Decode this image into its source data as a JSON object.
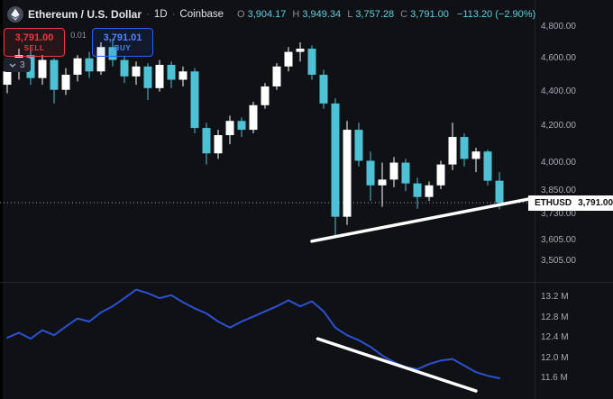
{
  "header": {
    "symbol_title": "Ethereum / U.S. Dollar",
    "separator": "·",
    "interval": "1D",
    "exchange": "Coinbase",
    "ohlc": {
      "o_label": "O",
      "o_value": "3,904.17",
      "h_label": "H",
      "h_value": "3,949.34",
      "l_label": "L",
      "l_value": "3,757.28",
      "c_label": "C",
      "c_value": "3,791.00",
      "change": "−113.20 (−2.90%)"
    }
  },
  "trade_panel": {
    "sell_price": "3,791.00",
    "sell_label": "SELL",
    "spread": "0.01",
    "buy_price": "3,791.01",
    "buy_label": "BUY",
    "objects_count": "3"
  },
  "price_scale": {
    "labels": [
      {
        "text": "4,800.00",
        "value": 4800
      },
      {
        "text": "4,600.00",
        "value": 4600
      },
      {
        "text": "4,400.00",
        "value": 4400
      },
      {
        "text": "4,200.00",
        "value": 4200
      },
      {
        "text": "4,000.00",
        "value": 4000
      },
      {
        "text": "3,850.00",
        "value": 3850
      },
      {
        "text": "3,730.00",
        "value": 3730
      },
      {
        "text": "3,605.00",
        "value": 3605
      },
      {
        "text": "3,505.00",
        "value": 3505
      }
    ],
    "tag": {
      "symbol": "ETHUSD",
      "price": "3,791.00",
      "price_value": 3791
    }
  },
  "volume_scale": {
    "labels": [
      {
        "text": "13.2 M",
        "value": 13.2
      },
      {
        "text": "12.8 M",
        "value": 12.8
      },
      {
        "text": "12.4 M",
        "value": 12.4
      },
      {
        "text": "12.0 M",
        "value": 12.0
      },
      {
        "text": "11.6 M",
        "value": 11.6
      }
    ]
  },
  "chart_data": {
    "type": "bar",
    "subtype": "candlestick",
    "title": "Ethereum / U.S. Dollar",
    "interval": "1D",
    "exchange": "Coinbase",
    "ohlc_last": {
      "open": 3904.17,
      "high": 3949.34,
      "low": 3757.28,
      "close": 3791.0,
      "change": -113.2,
      "change_pct": -2.9
    },
    "price_axis": {
      "scale": "log",
      "ticks": [
        4800,
        4600,
        4400,
        4200,
        4000,
        3850,
        3730,
        3605,
        3505
      ],
      "last_price": 3791
    },
    "up_color": "#ffffff",
    "down_color": "#4ec1d4",
    "line_color": "#2b52d4",
    "trendline_color": "#ffffff",
    "candles": [
      [
        4440,
        4580,
        4390,
        4520
      ],
      [
        4520,
        4660,
        4470,
        4620
      ],
      [
        4620,
        4650,
        4440,
        4480
      ],
      [
        4480,
        4620,
        4440,
        4590
      ],
      [
        4590,
        4600,
        4330,
        4410
      ],
      [
        4410,
        4540,
        4380,
        4500
      ],
      [
        4500,
        4620,
        4460,
        4600
      ],
      [
        4600,
        4640,
        4480,
        4520
      ],
      [
        4520,
        4700,
        4500,
        4670
      ],
      [
        4670,
        4720,
        4550,
        4590
      ],
      [
        4590,
        4610,
        4450,
        4490
      ],
      [
        4490,
        4580,
        4440,
        4550
      ],
      [
        4550,
        4570,
        4350,
        4420
      ],
      [
        4420,
        4590,
        4400,
        4560
      ],
      [
        4560,
        4580,
        4420,
        4470
      ],
      [
        4470,
        4550,
        4430,
        4520
      ],
      [
        4520,
        4540,
        4160,
        4190
      ],
      [
        4190,
        4220,
        3990,
        4050
      ],
      [
        4050,
        4180,
        4020,
        4150
      ],
      [
        4150,
        4260,
        4100,
        4230
      ],
      [
        4230,
        4250,
        4140,
        4180
      ],
      [
        4180,
        4340,
        4160,
        4320
      ],
      [
        4320,
        4450,
        4300,
        4430
      ],
      [
        4430,
        4570,
        4410,
        4550
      ],
      [
        4550,
        4670,
        4520,
        4640
      ],
      [
        4640,
        4700,
        4580,
        4660
      ],
      [
        4660,
        4680,
        4470,
        4500
      ],
      [
        4500,
        4530,
        4300,
        4330
      ],
      [
        4330,
        4360,
        3630,
        3720
      ],
      [
        3720,
        4230,
        3680,
        4180
      ],
      [
        4180,
        4220,
        3980,
        4010
      ],
      [
        4010,
        4060,
        3800,
        3880
      ],
      [
        3880,
        4000,
        3770,
        3910
      ],
      [
        3910,
        4030,
        3870,
        4000
      ],
      [
        4000,
        4020,
        3850,
        3890
      ],
      [
        3890,
        3920,
        3760,
        3820
      ],
      [
        3820,
        3900,
        3800,
        3880
      ],
      [
        3880,
        4010,
        3860,
        3990
      ],
      [
        3990,
        4220,
        3960,
        4140
      ],
      [
        4140,
        4160,
        3980,
        4020
      ],
      [
        4020,
        4080,
        3950,
        4060
      ],
      [
        4060,
        4070,
        3880,
        3904
      ],
      [
        3904.17,
        3949.34,
        3757.28,
        3791.0
      ]
    ],
    "volume_ma": {
      "unit": "M",
      "axis_ticks": [
        13.2,
        12.8,
        12.4,
        12.0,
        11.6
      ],
      "values": [
        12.4,
        12.5,
        12.38,
        12.55,
        12.45,
        12.62,
        12.78,
        12.72,
        12.9,
        13.02,
        13.18,
        13.35,
        13.28,
        13.18,
        13.24,
        13.1,
        12.98,
        12.88,
        12.72,
        12.6,
        12.72,
        12.82,
        12.92,
        13.02,
        13.14,
        13.02,
        13.12,
        12.92,
        12.6,
        12.45,
        12.35,
        12.22,
        12.05,
        11.92,
        11.82,
        11.78,
        11.88,
        11.95,
        11.98,
        11.85,
        11.72,
        11.65,
        11.6
      ]
    },
    "trendlines": {
      "main_support": {
        "from": {
          "bar": 26,
          "price": 3600
        },
        "to": {
          "bar": 45,
          "price": 3815
        }
      },
      "volume_down": {
        "from": {
          "bar": 26.5,
          "value": 12.38
        },
        "to": {
          "bar": 40,
          "value": 11.35
        }
      }
    }
  }
}
